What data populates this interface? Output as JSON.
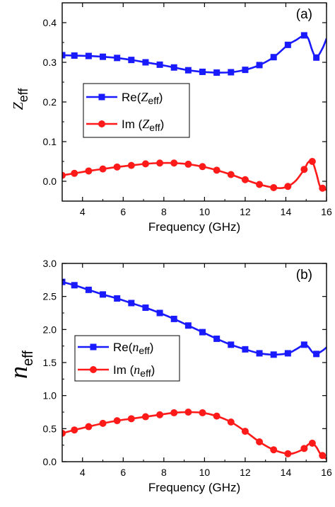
{
  "chart_data": [
    {
      "type": "line",
      "panel_label": "(a)",
      "xlabel": "Frequency (GHz)",
      "ylabel": {
        "main": "Z",
        "sub": "eff"
      },
      "xlim": [
        3,
        16
      ],
      "ylim": [
        -0.05,
        0.45
      ],
      "xticks": [
        "4",
        "6",
        "8",
        "10",
        "12",
        "14",
        "16"
      ],
      "yticks": [
        "0.0",
        "0.1",
        "0.2",
        "0.3",
        "0.4"
      ],
      "legend_position": "middle-left",
      "series": [
        {
          "name": "Re(Zeff)",
          "legend_prefix": "Re(",
          "legend_main": "Z",
          "legend_sub": "eff",
          "legend_suffix": ")",
          "color": "#1a1aff",
          "marker": "square",
          "x": [
            3.0,
            3.6,
            4.3,
            5.0,
            5.7,
            6.4,
            7.1,
            7.8,
            8.5,
            9.2,
            9.9,
            10.6,
            11.3,
            12.0,
            12.7,
            13.4,
            14.1,
            14.5,
            14.9,
            15.1,
            15.3,
            15.5,
            15.8,
            16.0
          ],
          "y": [
            0.318,
            0.317,
            0.316,
            0.314,
            0.311,
            0.306,
            0.3,
            0.294,
            0.287,
            0.28,
            0.276,
            0.274,
            0.275,
            0.281,
            0.293,
            0.313,
            0.344,
            0.356,
            0.368,
            0.36,
            0.33,
            0.312,
            0.335,
            0.36
          ],
          "markers_x": [
            3.0,
            3.6,
            4.3,
            5.0,
            5.7,
            6.4,
            7.1,
            7.8,
            8.5,
            9.2,
            9.9,
            10.6,
            11.3,
            12.0,
            12.7,
            13.4,
            14.1,
            14.9,
            15.5
          ]
        },
        {
          "name": "Im (Zeff)",
          "legend_prefix": "Im (",
          "legend_main": "Z",
          "legend_sub": "eff",
          "legend_suffix": ")",
          "color": "#ff1a1a",
          "marker": "circle",
          "x": [
            3.0,
            3.6,
            4.3,
            5.0,
            5.7,
            6.4,
            7.1,
            7.8,
            8.5,
            9.2,
            9.9,
            10.6,
            11.3,
            12.0,
            12.7,
            13.4,
            13.8,
            14.1,
            14.5,
            14.9,
            15.1,
            15.3,
            15.5,
            15.7,
            16.0
          ],
          "y": [
            0.015,
            0.02,
            0.026,
            0.031,
            0.036,
            0.04,
            0.044,
            0.046,
            0.046,
            0.043,
            0.037,
            0.028,
            0.017,
            0.004,
            -0.008,
            -0.016,
            -0.017,
            -0.013,
            0.002,
            0.03,
            0.048,
            0.05,
            0.02,
            -0.015,
            -0.022
          ],
          "markers_x": [
            3.0,
            3.6,
            4.3,
            5.0,
            5.7,
            6.4,
            7.1,
            7.8,
            8.5,
            9.2,
            9.9,
            10.6,
            11.3,
            12.0,
            12.7,
            13.4,
            14.1,
            14.9,
            15.3,
            15.8
          ]
        }
      ]
    },
    {
      "type": "line",
      "panel_label": "(b)",
      "xlabel": "Frequency (GHz)",
      "ylabel": {
        "main": "n",
        "sub": "eff"
      },
      "xlim": [
        3,
        16
      ],
      "ylim": [
        0.0,
        3.0
      ],
      "xticks": [
        "4",
        "6",
        "8",
        "10",
        "12",
        "14",
        "16"
      ],
      "yticks": [
        "0.0",
        "0.5",
        "1.0",
        "1.5",
        "2.0",
        "2.5",
        "3.0"
      ],
      "legend_position": "middle-left",
      "series": [
        {
          "name": "Re(neff)",
          "legend_prefix": "Re(",
          "legend_main": "n",
          "legend_sub": "eff",
          "legend_suffix": ")",
          "color": "#1a1aff",
          "marker": "square",
          "x": [
            3.0,
            3.6,
            4.3,
            5.0,
            5.7,
            6.4,
            7.1,
            7.8,
            8.5,
            9.2,
            9.9,
            10.6,
            11.3,
            12.0,
            12.7,
            13.4,
            14.1,
            14.5,
            14.9,
            15.1,
            15.3,
            15.5,
            15.8,
            16.0
          ],
          "y": [
            2.72,
            2.67,
            2.6,
            2.53,
            2.47,
            2.4,
            2.33,
            2.25,
            2.16,
            2.06,
            1.96,
            1.86,
            1.77,
            1.7,
            1.64,
            1.62,
            1.64,
            1.7,
            1.77,
            1.74,
            1.66,
            1.63,
            1.68,
            1.73
          ],
          "markers_x": [
            3.0,
            3.6,
            4.3,
            5.0,
            5.7,
            6.4,
            7.1,
            7.8,
            8.5,
            9.2,
            9.9,
            10.6,
            11.3,
            12.0,
            12.7,
            13.4,
            14.1,
            14.9,
            15.5
          ]
        },
        {
          "name": "Im (neff)",
          "legend_prefix": "Im (",
          "legend_main": "n",
          "legend_sub": "eff",
          "legend_suffix": ")",
          "color": "#ff1a1a",
          "marker": "circle",
          "x": [
            3.0,
            3.6,
            4.3,
            5.0,
            5.7,
            6.4,
            7.1,
            7.8,
            8.5,
            9.2,
            9.9,
            10.6,
            11.3,
            12.0,
            12.7,
            13.4,
            14.1,
            14.5,
            14.9,
            15.1,
            15.3,
            15.5,
            15.7,
            16.0
          ],
          "y": [
            0.43,
            0.48,
            0.53,
            0.58,
            0.62,
            0.65,
            0.68,
            0.71,
            0.74,
            0.75,
            0.74,
            0.69,
            0.6,
            0.46,
            0.3,
            0.18,
            0.12,
            0.14,
            0.2,
            0.26,
            0.28,
            0.22,
            0.12,
            0.04
          ],
          "markers_x": [
            3.0,
            3.6,
            4.3,
            5.0,
            5.7,
            6.4,
            7.1,
            7.8,
            8.5,
            9.2,
            9.9,
            10.6,
            11.3,
            12.0,
            12.7,
            13.4,
            14.1,
            14.9,
            15.3,
            15.8
          ]
        }
      ]
    }
  ]
}
